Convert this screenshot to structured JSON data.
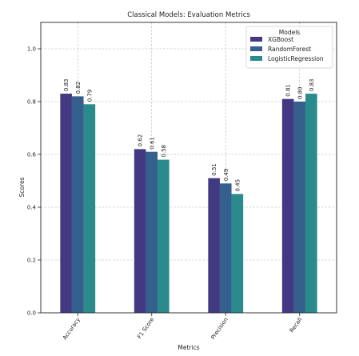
{
  "chart_data": {
    "type": "bar",
    "title": "Classical Models: Evaluation Metrics",
    "xlabel": "Metrics",
    "ylabel": "Scores",
    "categories": [
      "Accuracy",
      "F1 Score",
      "Precision",
      "Recall"
    ],
    "series": [
      {
        "name": "XGBoost",
        "color": "#433983",
        "values": [
          0.83,
          0.62,
          0.51,
          0.81
        ],
        "labels": [
          "0.83",
          "0.62",
          "0.51",
          "0.81"
        ]
      },
      {
        "name": "RandomForest",
        "color": "#355f8d",
        "values": [
          0.82,
          0.61,
          0.49,
          0.8
        ],
        "labels": [
          "0.82",
          "0.61",
          "0.49",
          "0.80"
        ]
      },
      {
        "name": "LogisticRegression",
        "color": "#2a8a8c",
        "values": [
          0.79,
          0.58,
          0.45,
          0.83
        ],
        "labels": [
          "0.79",
          "0.58",
          "0.45",
          "0.83"
        ]
      }
    ],
    "ylim": [
      0,
      1.1
    ],
    "yticks": [
      "0.0",
      "0.2",
      "0.4",
      "0.6",
      "0.8",
      "1.0"
    ],
    "grid": true,
    "legend_title": "Models",
    "legend_position": "top-right"
  }
}
